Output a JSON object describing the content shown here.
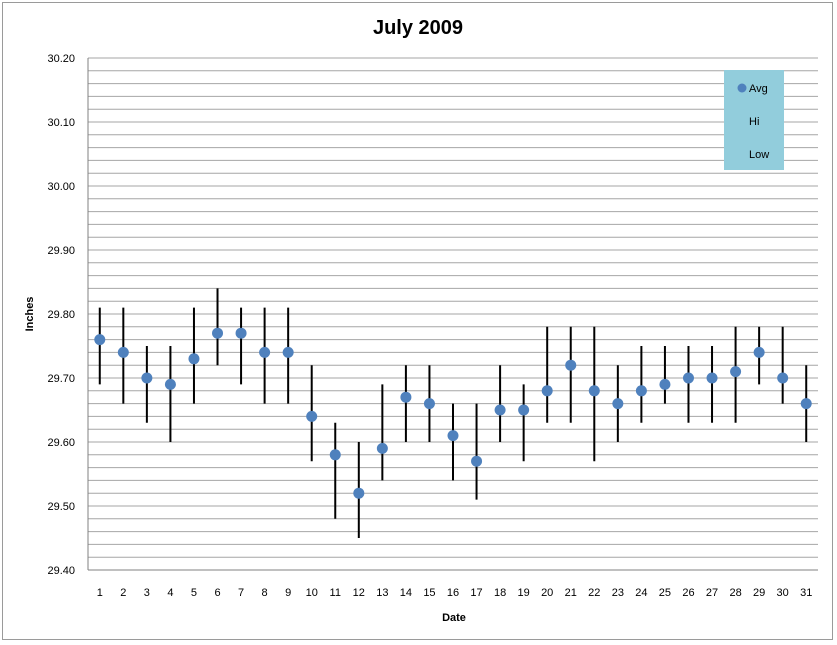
{
  "chart_data": {
    "type": "scatter",
    "title": "July 2009",
    "xlabel": "Date",
    "ylabel": "Inches",
    "ylim": [
      29.4,
      30.2
    ],
    "y_ticks": [
      "29.40",
      "29.50",
      "29.60",
      "29.70",
      "29.80",
      "29.90",
      "30.00",
      "30.10",
      "30.20"
    ],
    "x": [
      1,
      2,
      3,
      4,
      5,
      6,
      7,
      8,
      9,
      10,
      11,
      12,
      13,
      14,
      15,
      16,
      17,
      18,
      19,
      20,
      21,
      22,
      23,
      24,
      25,
      26,
      27,
      28,
      29,
      30,
      31
    ],
    "series": [
      {
        "name": "Avg",
        "values": [
          29.76,
          29.74,
          29.7,
          29.69,
          29.73,
          29.77,
          29.77,
          29.74,
          29.74,
          29.64,
          29.58,
          29.52,
          29.59,
          29.67,
          29.66,
          29.61,
          29.57,
          29.65,
          29.65,
          29.68,
          29.72,
          29.68,
          29.66,
          29.68,
          29.69,
          29.7,
          29.7,
          29.71,
          29.74,
          29.7,
          29.66
        ]
      },
      {
        "name": "Hi",
        "values": [
          29.81,
          29.81,
          29.75,
          29.75,
          29.81,
          29.84,
          29.81,
          29.81,
          29.81,
          29.72,
          29.63,
          29.6,
          29.69,
          29.72,
          29.72,
          29.66,
          29.66,
          29.72,
          29.69,
          29.78,
          29.78,
          29.78,
          29.72,
          29.75,
          29.75,
          29.75,
          29.75,
          29.78,
          29.78,
          29.78,
          29.72
        ]
      },
      {
        "name": "Low",
        "values": [
          29.69,
          29.66,
          29.63,
          29.6,
          29.66,
          29.72,
          29.69,
          29.66,
          29.66,
          29.57,
          29.48,
          29.45,
          29.54,
          29.6,
          29.6,
          29.54,
          29.51,
          29.6,
          29.57,
          29.63,
          29.63,
          29.57,
          29.6,
          29.63,
          29.66,
          29.63,
          29.63,
          29.63,
          29.69,
          29.66,
          29.6
        ]
      }
    ],
    "minor_grid_step": 0.02,
    "grid": true,
    "legend_position": "top-right",
    "colors": {
      "avg_marker": "#4f81bd",
      "range_line": "#000000",
      "legend_bg": "#92cddc",
      "grid": "#a6a6a6"
    }
  }
}
